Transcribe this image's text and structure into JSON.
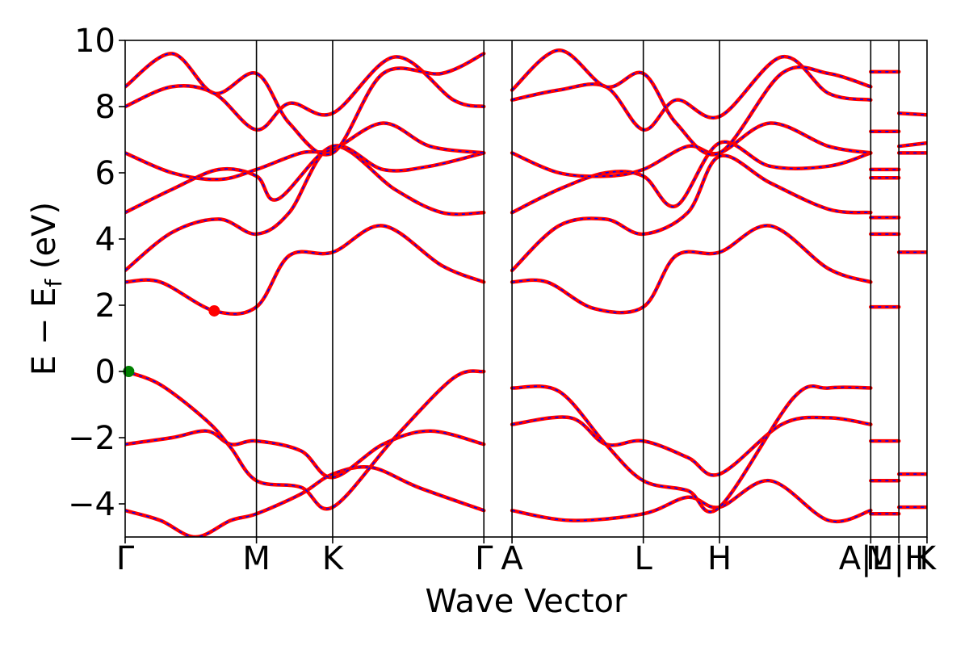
{
  "chart_data": {
    "type": "line",
    "title": "",
    "xlabel": "Wave Vector",
    "ylabel": "E − E_f (eV)",
    "ylabel_parts": {
      "main": "E − E",
      "sub": "f",
      "unit": " (eV)"
    },
    "ylim": [
      -5,
      10
    ],
    "yticks": [
      -4,
      -2,
      0,
      2,
      4,
      6,
      8,
      10
    ],
    "ytick_labels": [
      "−4",
      "−2",
      "0",
      "2",
      "4",
      "6",
      "8",
      "10"
    ],
    "xlim": [
      0,
      6.64
    ],
    "kpath_labels": [
      {
        "label": "Γ",
        "x": 0.0
      },
      {
        "label": "M",
        "x": 1.12
      },
      {
        "label": "K",
        "x": 1.77
      },
      {
        "label": "Γ",
        "x": 3.06
      },
      {
        "label": "A",
        "x": 3.3
      },
      {
        "label": "L",
        "x": 4.42
      },
      {
        "label": "H",
        "x": 5.07
      },
      {
        "label": "A|L",
        "x": 6.36
      },
      {
        "label": "M|H",
        "x": 6.6
      },
      {
        "label": "K",
        "x": 6.84
      }
    ],
    "kpath_label_text": [
      "Γ",
      "M",
      "K",
      "Γ",
      "A",
      "L",
      "H",
      "A|L",
      "M|H",
      "K"
    ],
    "grid": false,
    "line_colors": {
      "band_outer": "#ff0000",
      "band_inner": "#0000ff"
    },
    "markers": [
      {
        "name": "VBM",
        "x": 0.03,
        "y": 0.0,
        "color": "#008000"
      },
      {
        "name": "CBM",
        "x": 0.76,
        "y": 1.83,
        "color": "#ff0000"
      }
    ],
    "bands_path1": [
      [
        [
          0,
          -4.2
        ],
        [
          0.3,
          -4.5
        ],
        [
          0.6,
          -5.0
        ],
        [
          0.9,
          -4.5
        ],
        [
          1.12,
          -4.3
        ],
        [
          1.5,
          -3.7
        ],
        [
          1.77,
          -3.1
        ],
        [
          2.1,
          -2.9
        ],
        [
          2.5,
          -3.5
        ],
        [
          3.06,
          -4.2
        ]
      ],
      [
        [
          0,
          -2.2
        ],
        [
          0.4,
          -2.0
        ],
        [
          0.7,
          -1.8
        ],
        [
          0.9,
          -2.2
        ],
        [
          1.12,
          -2.1
        ],
        [
          1.5,
          -2.4
        ],
        [
          1.77,
          -3.2
        ],
        [
          2.2,
          -2.2
        ],
        [
          2.6,
          -1.8
        ],
        [
          3.06,
          -2.2
        ]
      ],
      [
        [
          0,
          0.0
        ],
        [
          0.3,
          -0.4
        ],
        [
          0.7,
          -1.5
        ],
        [
          0.9,
          -2.3
        ],
        [
          1.12,
          -3.3
        ],
        [
          1.5,
          -3.5
        ],
        [
          1.77,
          -4.1
        ],
        [
          2.3,
          -2.0
        ],
        [
          2.8,
          -0.2
        ],
        [
          3.06,
          0.0
        ]
      ],
      [
        [
          0,
          2.7
        ],
        [
          0.3,
          2.7
        ],
        [
          0.76,
          1.83
        ],
        [
          1.12,
          1.95
        ],
        [
          1.4,
          3.5
        ],
        [
          1.77,
          3.6
        ],
        [
          2.2,
          4.4
        ],
        [
          2.7,
          3.2
        ],
        [
          3.06,
          2.7
        ]
      ],
      [
        [
          0,
          3.05
        ],
        [
          0.4,
          4.2
        ],
        [
          0.8,
          4.6
        ],
        [
          1.12,
          4.15
        ],
        [
          1.4,
          4.8
        ],
        [
          1.77,
          6.8
        ],
        [
          2.3,
          5.5
        ],
        [
          2.7,
          4.8
        ],
        [
          3.06,
          4.8
        ]
      ],
      [
        [
          0,
          4.8
        ],
        [
          0.4,
          5.5
        ],
        [
          0.8,
          6.1
        ],
        [
          1.12,
          5.9
        ],
        [
          1.3,
          5.2
        ],
        [
          1.77,
          6.8
        ],
        [
          2.2,
          6.1
        ],
        [
          2.6,
          6.2
        ],
        [
          3.06,
          6.6
        ]
      ],
      [
        [
          0,
          6.6
        ],
        [
          0.4,
          6.0
        ],
        [
          0.8,
          5.8
        ],
        [
          1.12,
          6.1
        ],
        [
          1.5,
          6.6
        ],
        [
          1.77,
          6.7
        ],
        [
          2.2,
          7.5
        ],
        [
          2.6,
          6.8
        ],
        [
          3.06,
          6.6
        ]
      ],
      [
        [
          0,
          8.0
        ],
        [
          0.4,
          8.6
        ],
        [
          0.76,
          8.4
        ],
        [
          1.12,
          7.3
        ],
        [
          1.4,
          8.1
        ],
        [
          1.77,
          7.8
        ],
        [
          2.3,
          9.5
        ],
        [
          2.8,
          8.2
        ],
        [
          3.06,
          8.0
        ]
      ],
      [
        [
          0,
          8.6
        ],
        [
          0.4,
          9.6
        ],
        [
          0.76,
          8.4
        ],
        [
          1.12,
          9.0
        ],
        [
          1.4,
          7.5
        ],
        [
          1.77,
          6.6
        ],
        [
          2.2,
          9.0
        ],
        [
          2.7,
          9.0
        ],
        [
          3.06,
          9.6
        ]
      ]
    ],
    "bands_path2": [
      [
        [
          3.3,
          -4.2
        ],
        [
          3.8,
          -4.5
        ],
        [
          4.42,
          -4.3
        ],
        [
          4.8,
          -3.8
        ],
        [
          5.07,
          -4.1
        ],
        [
          5.5,
          -3.3
        ],
        [
          6.0,
          -4.5
        ],
        [
          6.36,
          -4.2
        ]
      ],
      [
        [
          3.3,
          -1.6
        ],
        [
          3.8,
          -1.4
        ],
        [
          4.1,
          -2.2
        ],
        [
          4.42,
          -2.1
        ],
        [
          4.8,
          -2.6
        ],
        [
          5.07,
          -3.1
        ],
        [
          5.6,
          -1.6
        ],
        [
          6.0,
          -1.4
        ],
        [
          6.36,
          -1.6
        ]
      ],
      [
        [
          3.3,
          -0.5
        ],
        [
          3.7,
          -0.6
        ],
        [
          4.1,
          -2.2
        ],
        [
          4.42,
          -3.3
        ],
        [
          4.8,
          -3.6
        ],
        [
          5.07,
          -4.1
        ],
        [
          5.7,
          -0.8
        ],
        [
          6.0,
          -0.5
        ],
        [
          6.36,
          -0.5
        ]
      ],
      [
        [
          3.3,
          2.7
        ],
        [
          3.6,
          2.7
        ],
        [
          4.0,
          1.9
        ],
        [
          4.42,
          1.95
        ],
        [
          4.7,
          3.5
        ],
        [
          5.07,
          3.6
        ],
        [
          5.5,
          4.4
        ],
        [
          6.0,
          3.1
        ],
        [
          6.36,
          2.7
        ]
      ],
      [
        [
          3.3,
          3.05
        ],
        [
          3.7,
          4.4
        ],
        [
          4.1,
          4.6
        ],
        [
          4.42,
          4.15
        ],
        [
          4.8,
          4.8
        ],
        [
          5.07,
          6.5
        ],
        [
          5.5,
          5.7
        ],
        [
          6.0,
          4.9
        ],
        [
          6.36,
          4.8
        ]
      ],
      [
        [
          3.3,
          4.8
        ],
        [
          3.7,
          5.5
        ],
        [
          4.1,
          6.0
        ],
        [
          4.42,
          5.9
        ],
        [
          4.7,
          5.0
        ],
        [
          5.07,
          6.9
        ],
        [
          5.5,
          6.2
        ],
        [
          6.0,
          6.2
        ],
        [
          6.36,
          6.6
        ]
      ],
      [
        [
          3.3,
          6.6
        ],
        [
          3.7,
          6.0
        ],
        [
          4.1,
          5.9
        ],
        [
          4.42,
          6.1
        ],
        [
          4.8,
          6.8
        ],
        [
          5.07,
          6.6
        ],
        [
          5.5,
          7.5
        ],
        [
          6.0,
          6.8
        ],
        [
          6.36,
          6.6
        ]
      ],
      [
        [
          3.3,
          8.2
        ],
        [
          3.7,
          8.5
        ],
        [
          4.1,
          8.6
        ],
        [
          4.42,
          7.3
        ],
        [
          4.7,
          8.2
        ],
        [
          5.07,
          7.7
        ],
        [
          5.6,
          9.5
        ],
        [
          6.0,
          8.4
        ],
        [
          6.36,
          8.2
        ]
      ],
      [
        [
          3.3,
          8.5
        ],
        [
          3.7,
          9.7
        ],
        [
          4.1,
          8.6
        ],
        [
          4.42,
          9.0
        ],
        [
          4.7,
          7.5
        ],
        [
          5.07,
          6.6
        ],
        [
          5.6,
          9.0
        ],
        [
          6.0,
          9.0
        ],
        [
          6.36,
          8.6
        ]
      ]
    ],
    "bands_path3": [
      [
        [
          6.36,
          -4.3
        ],
        [
          6.6,
          -4.3
        ]
      ],
      [
        [
          6.36,
          -3.3
        ],
        [
          6.6,
          -3.3
        ]
      ],
      [
        [
          6.36,
          -2.1
        ],
        [
          6.6,
          -2.1
        ]
      ],
      [
        [
          6.36,
          1.95
        ],
        [
          6.6,
          1.95
        ]
      ],
      [
        [
          6.36,
          4.15
        ],
        [
          6.6,
          4.15
        ]
      ],
      [
        [
          6.36,
          4.65
        ],
        [
          6.6,
          4.65
        ]
      ],
      [
        [
          6.36,
          5.85
        ],
        [
          6.6,
          5.85
        ]
      ],
      [
        [
          6.36,
          6.1
        ],
        [
          6.6,
          6.1
        ]
      ],
      [
        [
          6.36,
          7.25
        ],
        [
          6.6,
          7.25
        ]
      ],
      [
        [
          6.36,
          9.05
        ],
        [
          6.6,
          9.05
        ]
      ],
      [
        [
          6.6,
          -4.1
        ],
        [
          6.84,
          -4.1
        ]
      ],
      [
        [
          6.6,
          -3.1
        ],
        [
          6.84,
          -3.1
        ]
      ],
      [
        [
          6.6,
          3.6
        ],
        [
          6.84,
          3.6
        ]
      ],
      [
        [
          6.6,
          6.6
        ],
        [
          6.84,
          6.6
        ]
      ],
      [
        [
          6.6,
          6.8
        ],
        [
          6.84,
          6.9
        ]
      ],
      [
        [
          6.6,
          7.8
        ],
        [
          6.84,
          7.75
        ]
      ]
    ]
  }
}
